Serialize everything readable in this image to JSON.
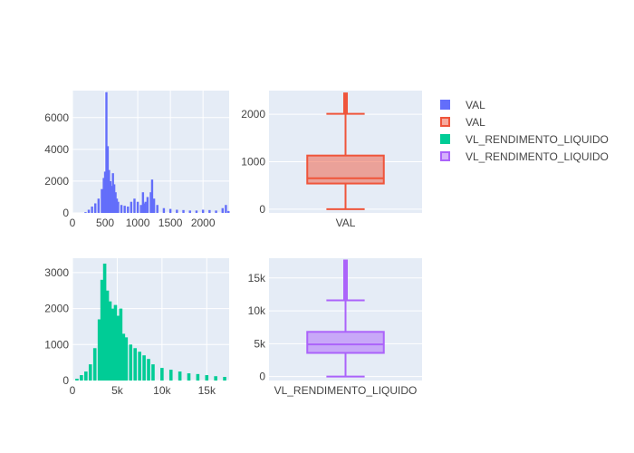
{
  "legend": [
    {
      "label": "VAL",
      "color": "#636efa",
      "kind": "histogram"
    },
    {
      "label": "VAL",
      "color": "#ef553b",
      "kind": "box"
    },
    {
      "label": "VL_RENDIMENTO_LIQUIDO",
      "color": "#00cc96",
      "kind": "histogram"
    },
    {
      "label": "VL_RENDIMENTO_LIQUIDO",
      "color": "#ab63fa",
      "kind": "box"
    }
  ],
  "chart_data": [
    {
      "type": "bar",
      "subtype": "histogram",
      "series_name": "VAL",
      "color": "#636efa",
      "xlim": [
        0,
        2400
      ],
      "ylim": [
        0,
        7700
      ],
      "xticks": [
        0,
        500,
        1000,
        1500,
        2000
      ],
      "xtick_labels": [
        "0",
        "500",
        "1000",
        "1500",
        "2000"
      ],
      "yticks": [
        0,
        2000,
        4000,
        6000
      ],
      "ytick_labels": [
        "0",
        "2000",
        "4000",
        "6000"
      ],
      "x": [
        200,
        250,
        300,
        350,
        400,
        450,
        480,
        500,
        520,
        540,
        560,
        580,
        600,
        620,
        640,
        660,
        680,
        700,
        750,
        800,
        850,
        900,
        950,
        1000,
        1050,
        1080,
        1100,
        1120,
        1150,
        1200,
        1220,
        1250,
        1300,
        1400,
        1500,
        1600,
        1700,
        1800,
        1900,
        2000,
        2100,
        2200,
        2300,
        2350,
        2390
      ],
      "y": [
        50,
        200,
        400,
        600,
        900,
        1500,
        2200,
        2600,
        7600,
        4200,
        2700,
        2000,
        1700,
        2500,
        1800,
        1300,
        900,
        700,
        500,
        450,
        400,
        700,
        900,
        700,
        500,
        1300,
        600,
        700,
        1000,
        1300,
        2100,
        900,
        500,
        300,
        250,
        200,
        180,
        150,
        150,
        200,
        180,
        150,
        300,
        500,
        120
      ]
    },
    {
      "type": "box",
      "series_name": "VAL",
      "category": "VAL",
      "color": "#ef553b",
      "ylim": [
        -80,
        2500
      ],
      "yticks": [
        0,
        1000,
        2000
      ],
      "ytick_labels": [
        "0",
        "1000",
        "2000"
      ],
      "min": 0,
      "q1": 540,
      "median": 650,
      "q3": 1130,
      "max": 2010,
      "outliers_range": [
        2010,
        2460
      ]
    },
    {
      "type": "bar",
      "subtype": "histogram",
      "series_name": "VL_RENDIMENTO_LIQUIDO",
      "color": "#00cc96",
      "xlim": [
        0,
        17500
      ],
      "ylim": [
        0,
        3400
      ],
      "xticks": [
        0,
        5000,
        10000,
        15000
      ],
      "xtick_labels": [
        "0",
        "5k",
        "10k",
        "15k"
      ],
      "yticks": [
        0,
        1000,
        2000,
        3000
      ],
      "ytick_labels": [
        "0",
        "1000",
        "2000",
        "3000"
      ],
      "x": [
        500,
        1000,
        1500,
        2000,
        2500,
        3000,
        3300,
        3600,
        3900,
        4200,
        4500,
        4800,
        5100,
        5400,
        5700,
        6000,
        6500,
        7000,
        7500,
        8000,
        8500,
        9000,
        10000,
        11000,
        12000,
        13000,
        14000,
        15000,
        16000,
        17000
      ],
      "y": [
        50,
        150,
        250,
        450,
        900,
        1700,
        2800,
        3250,
        2500,
        2200,
        2000,
        2100,
        1800,
        2000,
        1300,
        1200,
        1000,
        900,
        800,
        700,
        600,
        450,
        350,
        300,
        250,
        200,
        180,
        150,
        120,
        100
      ]
    },
    {
      "type": "box",
      "series_name": "VL_RENDIMENTO_LIQUIDO",
      "category": "VL_RENDIMENTO_LIQUIDO",
      "color": "#ab63fa",
      "ylim": [
        -600,
        18000
      ],
      "yticks": [
        0,
        5000,
        10000,
        15000
      ],
      "ytick_labels": [
        "0",
        "5k",
        "10k",
        "15k"
      ],
      "min": 0,
      "q1": 3600,
      "median": 4900,
      "q3": 6800,
      "max": 11600,
      "outliers_range": [
        11600,
        17800
      ]
    }
  ]
}
